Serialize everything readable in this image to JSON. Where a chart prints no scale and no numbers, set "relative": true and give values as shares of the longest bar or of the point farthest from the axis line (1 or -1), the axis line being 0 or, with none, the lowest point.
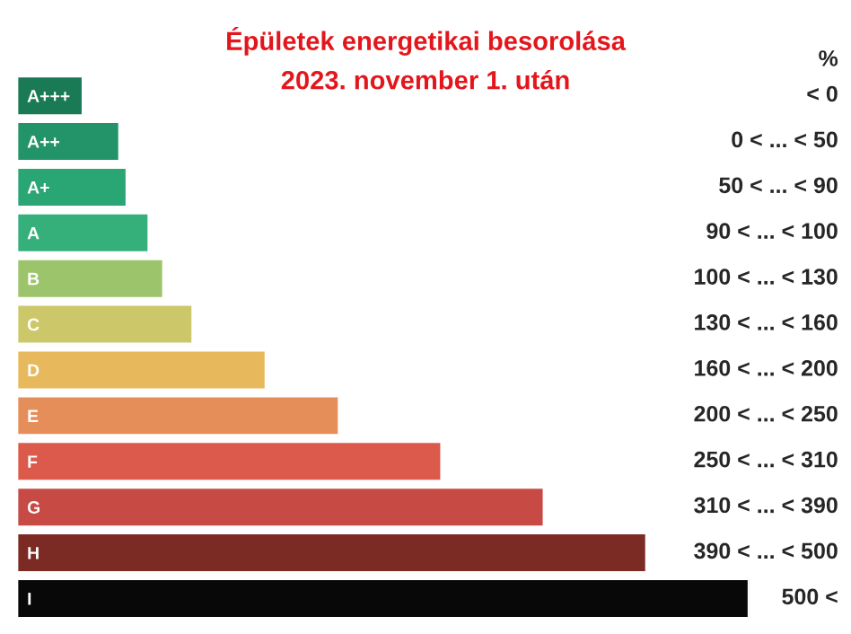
{
  "chart_data": {
    "type": "bar",
    "orientation": "horizontal",
    "relative": true,
    "title": "Épületek energetikai besorolása",
    "subtitle": "2023. november 1. után",
    "categories": [
      "A+++",
      "A++",
      "A+",
      "A",
      "B",
      "C",
      "D",
      "E",
      "F",
      "G",
      "H",
      "I"
    ],
    "values": [
      0.09,
      0.14,
      0.15,
      0.18,
      0.2,
      0.24,
      0.34,
      0.44,
      0.58,
      0.72,
      0.86,
      1.0
    ],
    "colors": [
      "#1a7a55",
      "#23946a",
      "#2aa574",
      "#35b07a",
      "#9cc46a",
      "#ccc86a",
      "#e8b95c",
      "#e58e5a",
      "#dc5a4c",
      "#c84a45",
      "#7c2a24",
      "#080808"
    ],
    "annotations": [
      "%",
      "< 0",
      "0 < ... < 50",
      "50 < ... < 90",
      "90 < ... < 100",
      "100 < ... < 130",
      "130 < ... < 160",
      "160 < ... < 200",
      "200 < ... < 250",
      "250 < ... < 310",
      "310 < ... < 390",
      "390 < ... < 500",
      "500 <"
    ]
  }
}
